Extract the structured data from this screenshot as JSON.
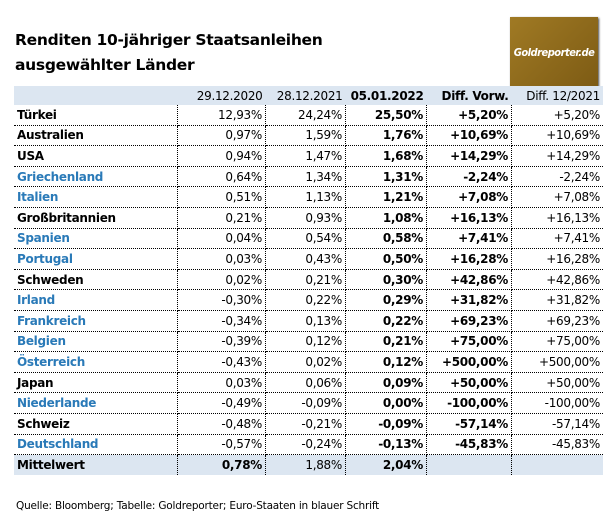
{
  "title_line1": "Renditen 10-jähriger Staatsanleihen",
  "title_line2": "ausgewählter Länder",
  "logo_text": "Goldreporter.de",
  "colors": {
    "euro_states": "#2a7ab8",
    "header_bg": "#dce6f1",
    "logo_bg": "#8c6a1c"
  },
  "headers": [
    "",
    "29.12.2020",
    "28.12.2021",
    "05.01.2022",
    "Diff. Vorw.",
    "Diff. 12/2021"
  ],
  "rows": [
    {
      "name": "Türkei",
      "euro": false,
      "v": [
        "12,93%",
        "24,24%",
        "25,50%",
        "+5,20%",
        "+5,20%"
      ]
    },
    {
      "name": "Australien",
      "euro": false,
      "v": [
        "0,97%",
        "1,59%",
        "1,76%",
        "+10,69%",
        "+10,69%"
      ]
    },
    {
      "name": "USA",
      "euro": false,
      "v": [
        "0,94%",
        "1,47%",
        "1,68%",
        "+14,29%",
        "+14,29%"
      ]
    },
    {
      "name": "Griechenland",
      "euro": true,
      "v": [
        "0,64%",
        "1,34%",
        "1,31%",
        "-2,24%",
        "-2,24%"
      ]
    },
    {
      "name": "Italien",
      "euro": true,
      "v": [
        "0,51%",
        "1,13%",
        "1,21%",
        "+7,08%",
        "+7,08%"
      ]
    },
    {
      "name": "Großbritannien",
      "euro": false,
      "v": [
        "0,21%",
        "0,93%",
        "1,08%",
        "+16,13%",
        "+16,13%"
      ]
    },
    {
      "name": "Spanien",
      "euro": true,
      "v": [
        "0,04%",
        "0,54%",
        "0,58%",
        "+7,41%",
        "+7,41%"
      ]
    },
    {
      "name": "Portugal",
      "euro": true,
      "v": [
        "0,03%",
        "0,43%",
        "0,50%",
        "+16,28%",
        "+16,28%"
      ]
    },
    {
      "name": "Schweden",
      "euro": false,
      "v": [
        "0,02%",
        "0,21%",
        "0,30%",
        "+42,86%",
        "+42,86%"
      ]
    },
    {
      "name": "Irland",
      "euro": true,
      "v": [
        "-0,30%",
        "0,22%",
        "0,29%",
        "+31,82%",
        "+31,82%"
      ]
    },
    {
      "name": "Frankreich",
      "euro": true,
      "v": [
        "-0,34%",
        "0,13%",
        "0,22%",
        "+69,23%",
        "+69,23%"
      ]
    },
    {
      "name": "Belgien",
      "euro": true,
      "v": [
        "-0,39%",
        "0,12%",
        "0,21%",
        "+75,00%",
        "+75,00%"
      ]
    },
    {
      "name": "Österreich",
      "euro": true,
      "v": [
        "-0,43%",
        "0,02%",
        "0,12%",
        "+500,00%",
        "+500,00%"
      ]
    },
    {
      "name": "Japan",
      "euro": false,
      "v": [
        "0,03%",
        "0,06%",
        "0,09%",
        "+50,00%",
        "+50,00%"
      ]
    },
    {
      "name": "Niederlande",
      "euro": true,
      "v": [
        "-0,49%",
        "-0,09%",
        "0,00%",
        "-100,00%",
        "-100,00%"
      ]
    },
    {
      "name": "Schweiz",
      "euro": false,
      "v": [
        "-0,48%",
        "-0,21%",
        "-0,09%",
        "-57,14%",
        "-57,14%"
      ]
    },
    {
      "name": "Deutschland",
      "euro": true,
      "v": [
        "-0,57%",
        "-0,24%",
        "-0,13%",
        "-45,83%",
        "-45,83%"
      ]
    }
  ],
  "average": {
    "name": "Mittelwert",
    "v": [
      "0,78%",
      "1,88%",
      "2,04%",
      "",
      ""
    ]
  },
  "source": "Quelle: Bloomberg; Tabelle: Goldreporter; Euro-Staaten in blauer Schrift"
}
